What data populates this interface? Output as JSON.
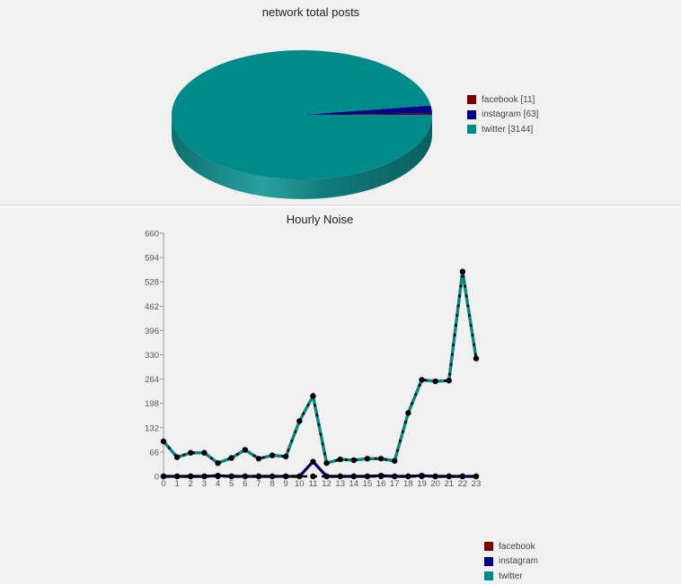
{
  "pie_title": "network total posts",
  "line_title": "Hourly Noise",
  "colors": {
    "facebook": "#7b0000",
    "instagram": "#00008b",
    "twitter": "#008b8b"
  },
  "chart_data": [
    {
      "type": "pie",
      "title": "network total posts",
      "legend_position": "right",
      "slices": [
        {
          "label": "facebook [11]",
          "value": 11
        },
        {
          "label": "instagram [63]",
          "value": 63
        },
        {
          "label": "twitter [3144]",
          "value": 3144
        }
      ]
    },
    {
      "type": "line",
      "title": "Hourly Noise",
      "legend_position": "right",
      "x": [
        "0",
        "1",
        "2",
        "3",
        "4",
        "5",
        "6",
        "7",
        "8",
        "9",
        "10",
        "11",
        "12",
        "13",
        "14",
        "15",
        "16",
        "17",
        "18",
        "19",
        "20",
        "21",
        "22",
        "23"
      ],
      "ylim": [
        0,
        660
      ],
      "yticks": [
        "0",
        "66",
        "132",
        "198",
        "264",
        "330",
        "396",
        "462",
        "528",
        "594",
        "660"
      ],
      "series": [
        {
          "name": "facebook",
          "values": [
            0,
            0,
            0,
            0,
            0,
            0,
            0,
            0,
            0,
            0,
            0,
            0,
            0,
            0,
            0,
            0,
            0,
            0,
            0,
            0,
            0,
            0,
            0,
            0
          ]
        },
        {
          "name": "instagram",
          "values": [
            0,
            0,
            0,
            0,
            2,
            0,
            0,
            0,
            0,
            0,
            0,
            40,
            0,
            0,
            0,
            0,
            2,
            0,
            0,
            2,
            0,
            0,
            0,
            0
          ]
        },
        {
          "name": "twitter",
          "values": [
            95,
            52,
            64,
            64,
            36,
            50,
            72,
            48,
            57,
            54,
            150,
            218,
            36,
            46,
            44,
            48,
            48,
            42,
            172,
            262,
            258,
            260,
            556,
            320
          ]
        }
      ]
    }
  ]
}
